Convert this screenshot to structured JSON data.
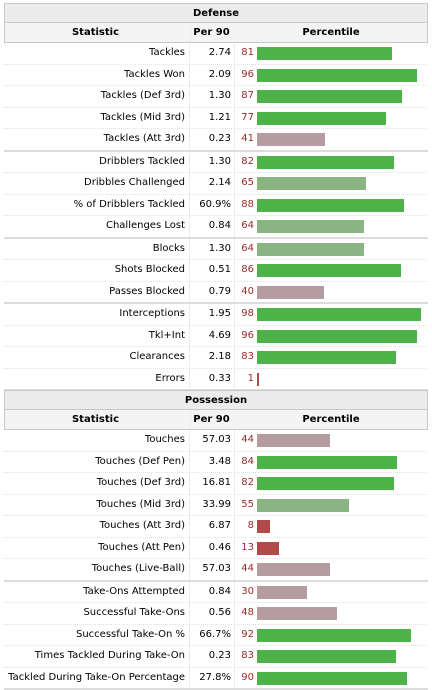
{
  "columns": {
    "statistic": "Statistic",
    "per90": "Per 90",
    "percentile": "Percentile"
  },
  "colors": {
    "bar_high": "#4db349",
    "bar_mid": "#8ab583",
    "bar_low": "#b59ca0",
    "bar_min": "#b34a4a",
    "percentile_text": "#9b2a2a"
  },
  "sections": [
    {
      "title": "Defense",
      "groups": [
        [
          {
            "label": "Tackles",
            "per90": "2.74",
            "pct": 81
          },
          {
            "label": "Tackles Won",
            "per90": "2.09",
            "pct": 96
          },
          {
            "label": "Tackles (Def 3rd)",
            "per90": "1.30",
            "pct": 87
          },
          {
            "label": "Tackles (Mid 3rd)",
            "per90": "1.21",
            "pct": 77
          },
          {
            "label": "Tackles (Att 3rd)",
            "per90": "0.23",
            "pct": 41
          }
        ],
        [
          {
            "label": "Dribblers Tackled",
            "per90": "1.30",
            "pct": 82
          },
          {
            "label": "Dribbles Challenged",
            "per90": "2.14",
            "pct": 65
          },
          {
            "label": "% of Dribblers Tackled",
            "per90": "60.9%",
            "pct": 88
          },
          {
            "label": "Challenges Lost",
            "per90": "0.84",
            "pct": 64
          }
        ],
        [
          {
            "label": "Blocks",
            "per90": "1.30",
            "pct": 64
          },
          {
            "label": "Shots Blocked",
            "per90": "0.51",
            "pct": 86
          },
          {
            "label": "Passes Blocked",
            "per90": "0.79",
            "pct": 40
          }
        ],
        [
          {
            "label": "Interceptions",
            "per90": "1.95",
            "pct": 98
          },
          {
            "label": "Tkl+Int",
            "per90": "4.69",
            "pct": 96
          },
          {
            "label": "Clearances",
            "per90": "2.18",
            "pct": 83
          },
          {
            "label": "Errors",
            "per90": "0.33",
            "pct": 1
          }
        ]
      ]
    },
    {
      "title": "Possession",
      "groups": [
        [
          {
            "label": "Touches",
            "per90": "57.03",
            "pct": 44
          },
          {
            "label": "Touches (Def Pen)",
            "per90": "3.48",
            "pct": 84
          },
          {
            "label": "Touches (Def 3rd)",
            "per90": "16.81",
            "pct": 82
          },
          {
            "label": "Touches (Mid 3rd)",
            "per90": "33.99",
            "pct": 55
          },
          {
            "label": "Touches (Att 3rd)",
            "per90": "6.87",
            "pct": 8
          },
          {
            "label": "Touches (Att Pen)",
            "per90": "0.46",
            "pct": 13
          },
          {
            "label": "Touches (Live-Ball)",
            "per90": "57.03",
            "pct": 44
          }
        ],
        [
          {
            "label": "Take-Ons Attempted",
            "per90": "0.84",
            "pct": 30
          },
          {
            "label": "Successful Take-Ons",
            "per90": "0.56",
            "pct": 48
          },
          {
            "label": "Successful Take-On %",
            "per90": "66.7%",
            "pct": 92
          },
          {
            "label": "Times Tackled During Take-On",
            "per90": "0.23",
            "pct": 83
          },
          {
            "label": "Tackled During Take-On Percentage",
            "per90": "27.8%",
            "pct": 90
          }
        ]
      ]
    }
  ]
}
